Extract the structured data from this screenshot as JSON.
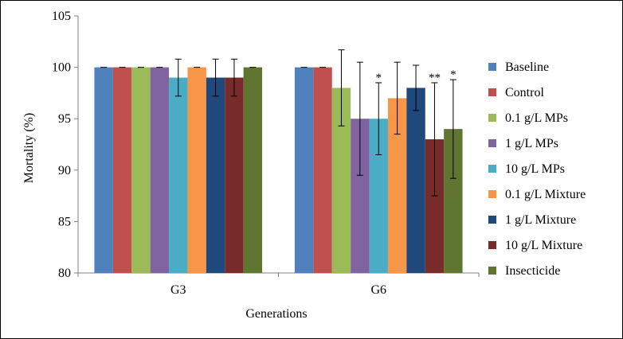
{
  "chart_data": {
    "type": "bar",
    "title": "",
    "xlabel": "Generations",
    "ylabel": "Mortality (%)",
    "ylim": [
      80,
      105
    ],
    "yticks": [
      80,
      85,
      90,
      95,
      100,
      105
    ],
    "grid": false,
    "legend_position": "right",
    "categories": [
      "G3",
      "G6"
    ],
    "series": [
      {
        "name": "Baseline",
        "color": "#4F81BD",
        "values": [
          100,
          100
        ],
        "errors": [
          0,
          0
        ],
        "significance": [
          "",
          ""
        ]
      },
      {
        "name": "Control",
        "color": "#C0504D",
        "values": [
          100,
          100
        ],
        "errors": [
          0,
          0
        ],
        "significance": [
          "",
          ""
        ]
      },
      {
        "name": "0.1 g/L MPs",
        "color": "#9BBB59",
        "values": [
          100,
          98
        ],
        "errors": [
          0,
          3.7
        ],
        "significance": [
          "",
          ""
        ]
      },
      {
        "name": "1 g/L MPs",
        "color": "#8064A2",
        "values": [
          100,
          95
        ],
        "errors": [
          0,
          5.5
        ],
        "significance": [
          "",
          ""
        ]
      },
      {
        "name": "10 g/L MPs",
        "color": "#4BACC6",
        "values": [
          99,
          95
        ],
        "errors": [
          1.8,
          3.5
        ],
        "significance": [
          "",
          "*"
        ]
      },
      {
        "name": "0.1 g/L Mixture",
        "color": "#F79646",
        "values": [
          100,
          97
        ],
        "errors": [
          0,
          3.5
        ],
        "significance": [
          "",
          ""
        ]
      },
      {
        "name": "1 g/L Mixture",
        "color": "#1F497D",
        "values": [
          99,
          98
        ],
        "errors": [
          1.8,
          2.2
        ],
        "significance": [
          "",
          ""
        ]
      },
      {
        "name": "10 g/L Mixture",
        "color": "#772C2A",
        "values": [
          99,
          93
        ],
        "errors": [
          1.8,
          5.5
        ],
        "significance": [
          "",
          "**"
        ]
      },
      {
        "name": "Insecticide",
        "color": "#5F7530",
        "values": [
          100,
          94
        ],
        "errors": [
          0,
          4.8
        ],
        "significance": [
          "",
          "*"
        ]
      }
    ]
  }
}
